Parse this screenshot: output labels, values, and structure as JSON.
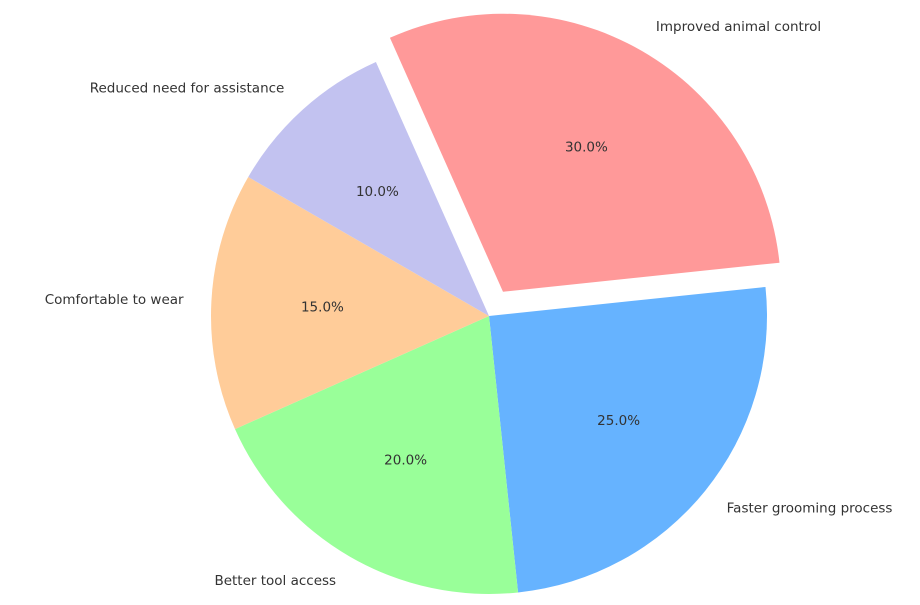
{
  "chart_data": {
    "type": "pie",
    "title": "",
    "start_angle_deg": 114,
    "direction": "clockwise",
    "slices": [
      {
        "label": "Improved animal control",
        "value": 30,
        "pct_label": "30.0%",
        "color": "#ff9999",
        "exploded": true
      },
      {
        "label": "Faster grooming process",
        "value": 25,
        "pct_label": "25.0%",
        "color": "#66b3ff",
        "exploded": false
      },
      {
        "label": "Better tool access",
        "value": 20,
        "pct_label": "20.0%",
        "color": "#99ff99",
        "exploded": false
      },
      {
        "label": "Comfortable to wear",
        "value": 15,
        "pct_label": "15.0%",
        "color": "#ffcc99",
        "exploded": false
      },
      {
        "label": "Reduced need for assistance",
        "value": 10,
        "pct_label": "10.0%",
        "color": "#c2c2f0",
        "exploded": false
      }
    ]
  }
}
